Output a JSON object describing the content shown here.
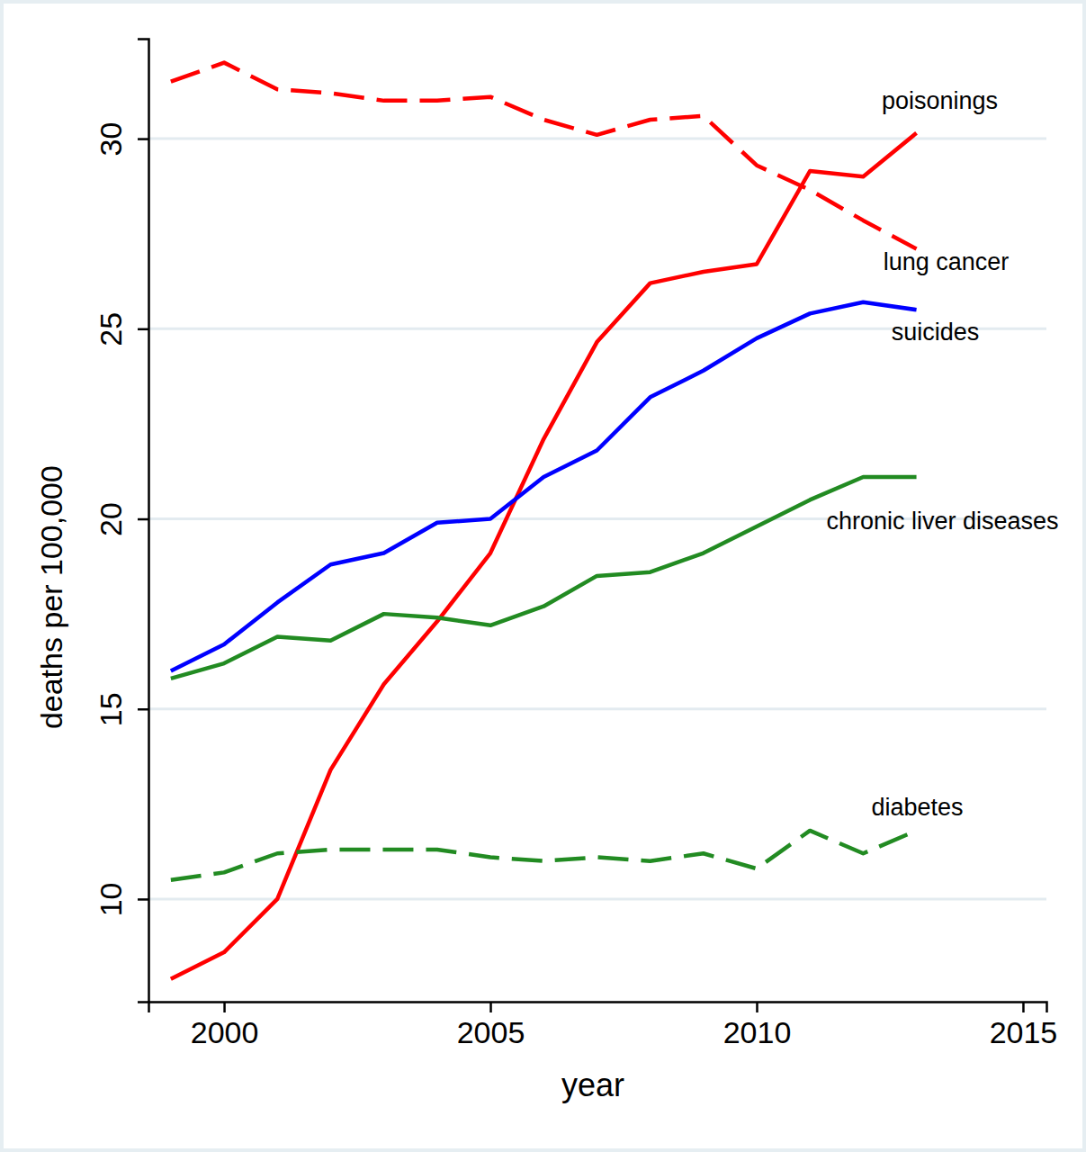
{
  "chart_data": {
    "type": "line",
    "x_label": "year",
    "y_label": "deaths per 100,000",
    "x": [
      1999,
      2000,
      2001,
      2002,
      2003,
      2004,
      2005,
      2006,
      2007,
      2008,
      2009,
      2010,
      2011,
      2012,
      2013
    ],
    "xlim": [
      1998.58,
      2015.44
    ],
    "ylim": [
      7.3,
      32.63
    ],
    "xticks": [
      2000,
      2005,
      2010,
      2015
    ],
    "yticks": [
      10,
      15,
      20,
      25,
      30
    ],
    "grid": true,
    "series": [
      {
        "name": "poisonings",
        "color": "#ff0000",
        "line_style": "solid",
        "values": [
          7.9,
          8.6,
          10.0,
          13.4,
          15.65,
          17.3,
          19.1,
          22.1,
          24.65,
          26.2,
          26.5,
          26.7,
          29.15,
          29.0,
          30.15
        ]
      },
      {
        "name": "lung cancer",
        "color": "#ff0000",
        "line_style": "dashed",
        "values": [
          31.5,
          32.0,
          31.3,
          31.2,
          31.0,
          31.0,
          31.1,
          30.5,
          30.1,
          30.5,
          30.6,
          29.3,
          28.65,
          27.85,
          27.1
        ]
      },
      {
        "name": "suicides",
        "color": "#0000ff",
        "line_style": "solid",
        "values": [
          16.0,
          16.7,
          17.8,
          18.8,
          19.1,
          19.9,
          20.0,
          21.1,
          21.8,
          23.2,
          23.9,
          24.75,
          25.4,
          25.7,
          25.5
        ]
      },
      {
        "name": "chronic liver diseases",
        "color": "#228b22",
        "line_style": "solid",
        "values": [
          15.8,
          16.2,
          16.9,
          16.8,
          17.5,
          17.4,
          17.2,
          17.7,
          18.5,
          18.6,
          19.1,
          19.8,
          20.5,
          21.1,
          21.1
        ]
      },
      {
        "name": "diabetes",
        "color": "#228b22",
        "line_style": "dashed",
        "values": [
          10.5,
          10.7,
          11.2,
          11.3,
          11.3,
          11.3,
          11.1,
          11.0,
          11.1,
          11.0,
          11.2,
          10.8,
          11.8,
          11.2,
          11.8
        ]
      }
    ]
  }
}
